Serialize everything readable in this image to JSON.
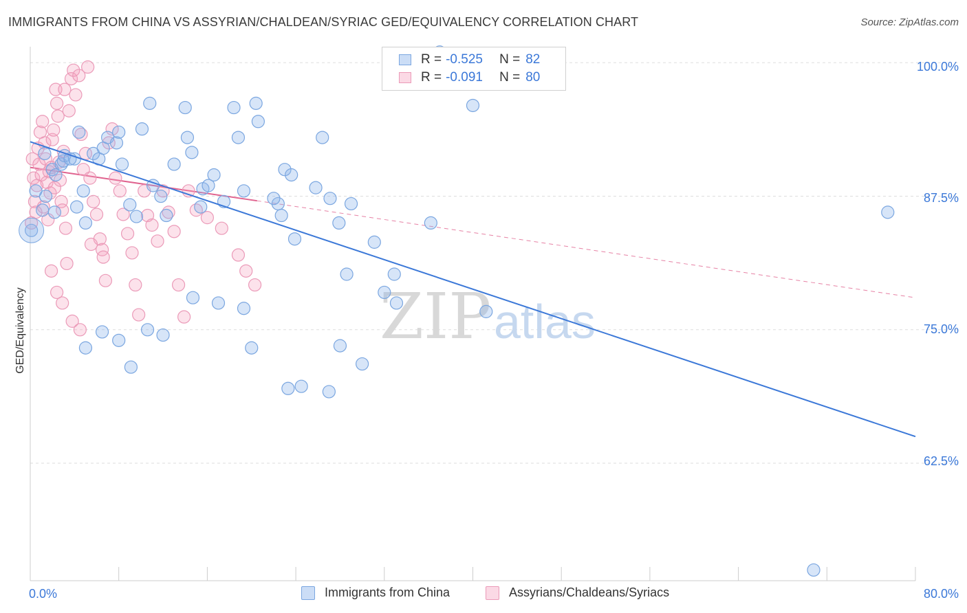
{
  "title": "IMMIGRANTS FROM CHINA VS ASSYRIAN/CHALDEAN/SYRIAC GED/EQUIVALENCY CORRELATION CHART",
  "source": "Source: ZipAtlas.com",
  "watermark": {
    "zip": "ZIP",
    "atlas": "atlas"
  },
  "colors": {
    "blue": "#3b78d8",
    "blue_fill": "rgba(140,180,235,0.35)",
    "blue_stroke": "#7aa6e0",
    "pink": "#e0628e",
    "pink_fill": "rgba(245,160,190,0.30)",
    "pink_stroke": "#eb9ab8",
    "grid": "#dddddd",
    "axis_text": "#3b78d8"
  },
  "legend": {
    "r_label": "R =",
    "n_label": "N =",
    "rows": [
      {
        "series": "Immigrants from China",
        "r": "-0.525",
        "n": "82"
      },
      {
        "series": "Assyrians/Chaldeans/Syriacs",
        "r": "-0.091",
        "n": "80"
      }
    ]
  },
  "chart_data": {
    "type": "scatter",
    "title": "IMMIGRANTS FROM CHINA VS ASSYRIAN/CHALDEAN/SYRIAC GED/EQUIVALENCY CORRELATION CHART",
    "xlabel": "",
    "ylabel": "GED/Equivalency",
    "xlim": [
      0,
      80
    ],
    "ylim": [
      51.5,
      101.5
    ],
    "x_tick_labels": [
      "0.0%",
      "80.0%"
    ],
    "y_ticks": [
      100,
      87.5,
      75,
      62.5
    ],
    "y_tick_labels": [
      "100.0%",
      "87.5%",
      "75.0%",
      "62.5%"
    ],
    "grid": true,
    "legend_position": "top-center",
    "series": [
      {
        "name": "Immigrants from China",
        "color": "#3b78d8",
        "trend": {
          "x": [
            0,
            80
          ],
          "y": [
            92.6,
            65.0
          ],
          "style": "solid"
        },
        "points": [
          [
            0.1,
            84.3
          ],
          [
            0.5,
            88.0
          ],
          [
            1.4,
            87.5
          ],
          [
            1.3,
            91.5
          ],
          [
            2.0,
            90.0
          ],
          [
            2.3,
            89.5
          ],
          [
            2.8,
            90.5
          ],
          [
            3.0,
            90.8
          ],
          [
            3.1,
            91.3
          ],
          [
            4.0,
            91.0
          ],
          [
            4.2,
            86.5
          ],
          [
            5.0,
            85.0
          ],
          [
            5.7,
            91.5
          ],
          [
            6.2,
            91.0
          ],
          [
            6.6,
            92.0
          ],
          [
            7.0,
            93.0
          ],
          [
            7.8,
            92.5
          ],
          [
            8.0,
            93.5
          ],
          [
            8.3,
            90.5
          ],
          [
            9.0,
            86.7
          ],
          [
            9.6,
            85.6
          ],
          [
            10.1,
            93.8
          ],
          [
            10.8,
            96.2
          ],
          [
            11.1,
            88.5
          ],
          [
            11.8,
            87.5
          ],
          [
            12.3,
            85.7
          ],
          [
            13.0,
            90.5
          ],
          [
            14.0,
            95.8
          ],
          [
            14.2,
            93.0
          ],
          [
            14.6,
            91.6
          ],
          [
            15.4,
            86.5
          ],
          [
            15.6,
            88.2
          ],
          [
            16.1,
            88.5
          ],
          [
            16.6,
            89.5
          ],
          [
            17.5,
            87.0
          ],
          [
            18.4,
            95.8
          ],
          [
            18.8,
            93.0
          ],
          [
            19.3,
            88.0
          ],
          [
            20.6,
            94.5
          ],
          [
            20.4,
            96.2
          ],
          [
            22.4,
            86.8
          ],
          [
            23.0,
            90.0
          ],
          [
            23.6,
            89.5
          ],
          [
            22.0,
            87.3
          ],
          [
            22.7,
            85.7
          ],
          [
            23.9,
            83.5
          ],
          [
            25.8,
            88.3
          ],
          [
            26.4,
            93.0
          ],
          [
            27.1,
            87.3
          ],
          [
            27.9,
            85.0
          ],
          [
            29.0,
            86.8
          ],
          [
            28.6,
            80.2
          ],
          [
            31.1,
            83.2
          ],
          [
            32.0,
            78.5
          ],
          [
            33.1,
            77.5
          ],
          [
            32.9,
            80.2
          ],
          [
            37.0,
            101.0
          ],
          [
            36.2,
            85.0
          ],
          [
            40.0,
            96.0
          ],
          [
            41.2,
            76.7
          ],
          [
            30.0,
            71.8
          ],
          [
            28.0,
            73.5
          ],
          [
            27.0,
            69.2
          ],
          [
            24.5,
            69.7
          ],
          [
            23.3,
            69.5
          ],
          [
            20.0,
            73.3
          ],
          [
            19.3,
            77.0
          ],
          [
            17.0,
            77.5
          ],
          [
            14.7,
            78.0
          ],
          [
            12.0,
            74.5
          ],
          [
            10.6,
            75.0
          ],
          [
            9.1,
            71.5
          ],
          [
            8.0,
            74.0
          ],
          [
            6.5,
            74.8
          ],
          [
            5.0,
            73.3
          ],
          [
            4.8,
            88.0
          ],
          [
            4.4,
            93.5
          ],
          [
            3.6,
            91.0
          ],
          [
            2.2,
            86.0
          ],
          [
            1.1,
            86.2
          ],
          [
            70.8,
            52.5
          ],
          [
            77.5,
            86.0
          ]
        ]
      },
      {
        "name": "Assyrians/Chaldeans/Syriacs",
        "color": "#e0628e",
        "trend": {
          "x": [
            0,
            80
          ],
          "y": [
            90.2,
            78.0
          ],
          "solid_until": 20.5,
          "style": "solid-then-dashed"
        },
        "points": [
          [
            0.2,
            91.0
          ],
          [
            0.3,
            89.2
          ],
          [
            0.4,
            87.0
          ],
          [
            0.5,
            86.0
          ],
          [
            0.6,
            88.5
          ],
          [
            0.7,
            92.0
          ],
          [
            0.8,
            90.5
          ],
          [
            0.9,
            93.5
          ],
          [
            1.0,
            89.5
          ],
          [
            1.1,
            94.5
          ],
          [
            1.2,
            86.5
          ],
          [
            1.3,
            92.5
          ],
          [
            1.4,
            91.0
          ],
          [
            1.5,
            88.8
          ],
          [
            1.6,
            85.3
          ],
          [
            1.7,
            89.8
          ],
          [
            1.8,
            87.8
          ],
          [
            1.9,
            90.2
          ],
          [
            2.0,
            92.8
          ],
          [
            2.1,
            93.7
          ],
          [
            2.2,
            88.3
          ],
          [
            2.3,
            97.5
          ],
          [
            2.4,
            96.2
          ],
          [
            2.5,
            95.0
          ],
          [
            2.6,
            90.7
          ],
          [
            2.7,
            89.0
          ],
          [
            2.8,
            87.0
          ],
          [
            2.9,
            86.2
          ],
          [
            3.0,
            91.7
          ],
          [
            3.1,
            97.5
          ],
          [
            3.2,
            84.5
          ],
          [
            3.3,
            81.2
          ],
          [
            3.5,
            95.5
          ],
          [
            3.7,
            98.5
          ],
          [
            3.9,
            99.3
          ],
          [
            4.1,
            97.0
          ],
          [
            4.4,
            98.8
          ],
          [
            4.6,
            93.3
          ],
          [
            4.8,
            90.0
          ],
          [
            5.0,
            91.5
          ],
          [
            5.2,
            99.6
          ],
          [
            5.4,
            89.2
          ],
          [
            5.7,
            87.0
          ],
          [
            6.0,
            85.8
          ],
          [
            6.3,
            83.5
          ],
          [
            6.5,
            82.5
          ],
          [
            6.8,
            79.6
          ],
          [
            7.1,
            92.5
          ],
          [
            7.4,
            93.8
          ],
          [
            7.7,
            89.2
          ],
          [
            8.1,
            88.0
          ],
          [
            8.4,
            85.8
          ],
          [
            8.8,
            84.0
          ],
          [
            9.2,
            82.2
          ],
          [
            9.5,
            79.2
          ],
          [
            9.8,
            76.4
          ],
          [
            10.3,
            88.0
          ],
          [
            10.6,
            85.7
          ],
          [
            11.0,
            84.8
          ],
          [
            11.5,
            83.3
          ],
          [
            12.0,
            88.0
          ],
          [
            12.5,
            86.0
          ],
          [
            13.0,
            84.2
          ],
          [
            13.4,
            79.2
          ],
          [
            13.9,
            76.2
          ],
          [
            14.3,
            88.0
          ],
          [
            15.0,
            86.2
          ],
          [
            16.0,
            85.5
          ],
          [
            17.3,
            84.5
          ],
          [
            18.8,
            82.0
          ],
          [
            19.5,
            80.5
          ],
          [
            20.3,
            79.2
          ],
          [
            1.9,
            80.5
          ],
          [
            2.4,
            78.5
          ],
          [
            2.9,
            77.5
          ],
          [
            3.8,
            75.8
          ],
          [
            4.5,
            75.0
          ],
          [
            5.5,
            83.0
          ],
          [
            6.6,
            81.8
          ],
          [
            0.1,
            85.0
          ]
        ]
      }
    ]
  },
  "bottom_legend": [
    "Immigrants from China",
    "Assyrians/Chaldeans/Syriacs"
  ]
}
